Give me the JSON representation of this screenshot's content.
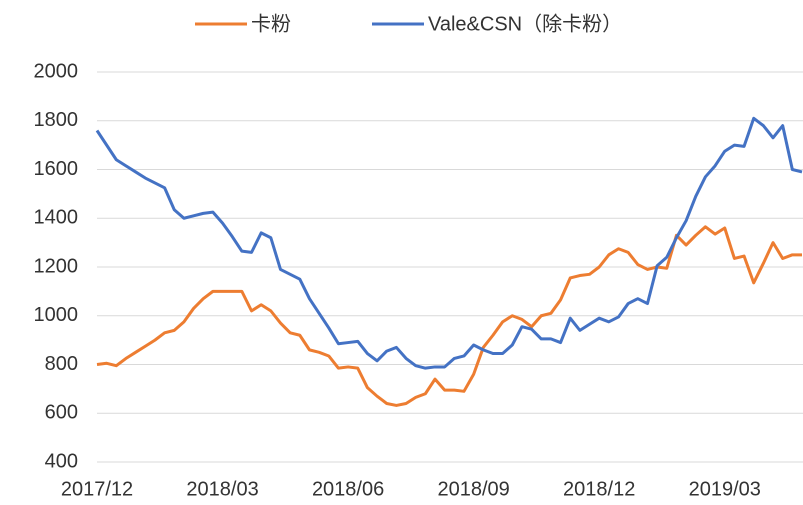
{
  "chart_data": {
    "type": "line",
    "categories": [
      "2017/12",
      null,
      null,
      null,
      null,
      null,
      null,
      null,
      null,
      null,
      null,
      null,
      null,
      "2018/03",
      null,
      null,
      null,
      null,
      null,
      null,
      null,
      null,
      null,
      null,
      null,
      null,
      "2018/06",
      null,
      null,
      null,
      null,
      null,
      null,
      null,
      null,
      null,
      null,
      null,
      null,
      "2018/09",
      null,
      null,
      null,
      null,
      null,
      null,
      null,
      null,
      null,
      null,
      null,
      null,
      "2018/12",
      null,
      null,
      null,
      null,
      null,
      null,
      null,
      null,
      null,
      null,
      null,
      null,
      "2019/03",
      null,
      null,
      null,
      null,
      null,
      null,
      null,
      null
    ],
    "series": [
      {
        "name": "卡粉",
        "color": "#ed7d31",
        "values": [
          800,
          805,
          795,
          825,
          850,
          875,
          900,
          930,
          940,
          975,
          1030,
          1070,
          1100,
          1100,
          1100,
          1100,
          1020,
          1045,
          1020,
          970,
          930,
          920,
          860,
          850,
          835,
          785,
          790,
          785,
          705,
          670,
          640,
          632,
          640,
          665,
          680,
          740,
          695,
          695,
          690,
          760,
          870,
          920,
          975,
          1000,
          985,
          955,
          1000,
          1010,
          1065,
          1155,
          1165,
          1170,
          1200,
          1250,
          1275,
          1260,
          1210,
          1190,
          1200,
          1195,
          1330,
          1290,
          1330,
          1365,
          1335,
          1360,
          1235,
          1245,
          1135,
          1215,
          1300,
          1235,
          1250,
          1250
        ]
      },
      {
        "name": "Vale&CSN（除卡粉）",
        "color": "#4472c4",
        "values": [
          1760,
          1700,
          1640,
          1615,
          1590,
          1565,
          1545,
          1525,
          1435,
          1400,
          1410,
          1420,
          1425,
          1380,
          1325,
          1265,
          1260,
          1340,
          1320,
          1190,
          1170,
          1150,
          1070,
          1010,
          950,
          885,
          890,
          895,
          845,
          815,
          855,
          870,
          825,
          795,
          785,
          790,
          790,
          825,
          835,
          880,
          860,
          845,
          845,
          880,
          955,
          945,
          905,
          905,
          890,
          990,
          940,
          965,
          990,
          975,
          995,
          1050,
          1070,
          1050,
          1205,
          1240,
          1320,
          1390,
          1490,
          1570,
          1615,
          1675,
          1700,
          1695,
          1810,
          1780,
          1730,
          1780,
          1600,
          1590
        ]
      }
    ],
    "ylim": [
      400,
      2000
    ],
    "yticks": [
      400,
      600,
      800,
      1000,
      1200,
      1400,
      1600,
      1800,
      2000
    ],
    "grid": true,
    "legend": "top"
  }
}
